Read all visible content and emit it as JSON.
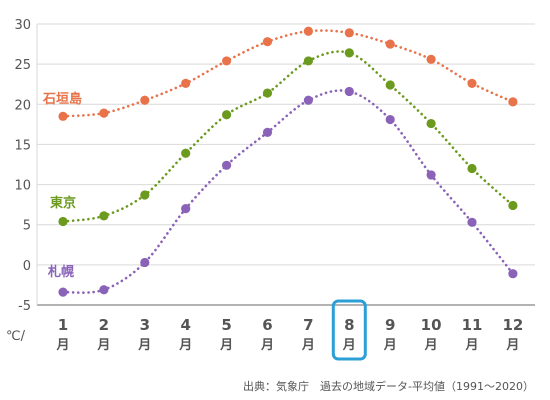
{
  "chart_data": {
    "type": "line",
    "categories": [
      "1",
      "2",
      "3",
      "4",
      "5",
      "6",
      "7",
      "8",
      "9",
      "10",
      "11",
      "12"
    ],
    "month_suffix": "月",
    "highlighted_category": "8",
    "y_unit": "℃/",
    "ylim": [
      -5,
      30
    ],
    "yticks": [
      -5,
      0,
      5,
      10,
      15,
      20,
      25,
      30
    ],
    "grid": true,
    "series": [
      {
        "name": "石垣島",
        "color": "#e8734a",
        "values": [
          18.5,
          18.9,
          20.5,
          22.6,
          25.4,
          27.8,
          29.1,
          28.9,
          27.5,
          25.6,
          22.6,
          20.3
        ]
      },
      {
        "name": "東京",
        "color": "#6b9a1f",
        "values": [
          5.4,
          6.1,
          8.7,
          13.9,
          18.7,
          21.4,
          25.4,
          26.4,
          22.4,
          17.6,
          12.0,
          7.4
        ]
      },
      {
        "name": "札幌",
        "color": "#8a63b8",
        "values": [
          -3.4,
          -3.1,
          0.3,
          7.0,
          12.4,
          16.5,
          20.5,
          21.6,
          18.1,
          11.2,
          5.3,
          -1.1
        ]
      }
    ],
    "source": "出典：気象庁　過去の地域データ-平均値（1991〜2020）"
  }
}
